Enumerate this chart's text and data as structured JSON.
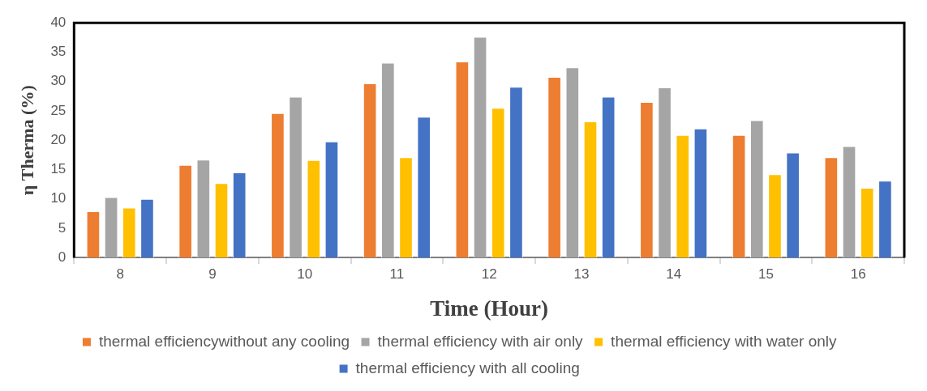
{
  "chart_data": {
    "type": "bar",
    "xlabel": "Time (Hour)",
    "ylabel": "η Therma (%)",
    "categories": [
      "8",
      "9",
      "10",
      "11",
      "12",
      "13",
      "14",
      "15",
      "16"
    ],
    "series": [
      {
        "name": "thermal efficiencywithout any cooling",
        "color": "#ed7d31",
        "values": [
          7.9,
          15.8,
          24.6,
          29.7,
          33.4,
          30.8,
          26.5,
          20.9,
          17.1
        ]
      },
      {
        "name": "thermal efficiency with air only",
        "color": "#a5a5a5",
        "values": [
          10.3,
          16.7,
          27.4,
          33.2,
          37.6,
          32.4,
          29.0,
          23.4,
          19.0
        ]
      },
      {
        "name": "thermal efficiency with water only",
        "color": "#ffc000",
        "values": [
          8.5,
          12.7,
          16.6,
          17.1,
          25.5,
          23.2,
          20.9,
          14.2,
          11.9
        ]
      },
      {
        "name": "thermal efficiency with all cooling",
        "color": "#4472c4",
        "values": [
          10.0,
          14.5,
          19.8,
          24.0,
          29.1,
          27.4,
          22.0,
          17.9,
          13.1
        ]
      }
    ],
    "ylim": [
      0,
      40
    ],
    "yticks": [
      0,
      5,
      10,
      15,
      20,
      25,
      30,
      35,
      40
    ],
    "grid": false,
    "legend": "bottom"
  }
}
